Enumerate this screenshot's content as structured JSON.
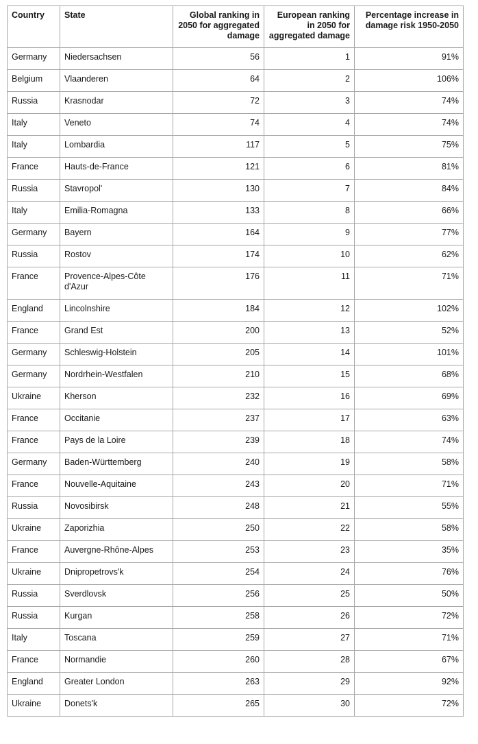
{
  "chart_data": {
    "type": "table",
    "columns": [
      "Country",
      "State",
      "Global ranking in 2050 for aggregated damage",
      "European ranking in 2050 for aggregated damage",
      "Percentage increase in damage risk 1950-2050"
    ],
    "rows": [
      [
        "Germany",
        "Niedersachsen",
        56,
        1,
        "91%"
      ],
      [
        "Belgium",
        "Vlaanderen",
        64,
        2,
        "106%"
      ],
      [
        "Russia",
        "Krasnodar",
        72,
        3,
        "74%"
      ],
      [
        "Italy",
        "Veneto",
        74,
        4,
        "74%"
      ],
      [
        "Italy",
        "Lombardia",
        117,
        5,
        "75%"
      ],
      [
        "France",
        "Hauts-de-France",
        121,
        6,
        "81%"
      ],
      [
        "Russia",
        "Stavropol'",
        130,
        7,
        "84%"
      ],
      [
        "Italy",
        "Emilia-Romagna",
        133,
        8,
        "66%"
      ],
      [
        "Germany",
        "Bayern",
        164,
        9,
        "77%"
      ],
      [
        "Russia",
        "Rostov",
        174,
        10,
        "62%"
      ],
      [
        "France",
        "Provence-Alpes-Côte d'Azur",
        176,
        11,
        "71%"
      ],
      [
        "England",
        "Lincolnshire",
        184,
        12,
        "102%"
      ],
      [
        "France",
        "Grand Est",
        200,
        13,
        "52%"
      ],
      [
        "Germany",
        "Schleswig-Holstein",
        205,
        14,
        "101%"
      ],
      [
        "Germany",
        "Nordrhein-Westfalen",
        210,
        15,
        "68%"
      ],
      [
        "Ukraine",
        "Kherson",
        232,
        16,
        "69%"
      ],
      [
        "France",
        "Occitanie",
        237,
        17,
        "63%"
      ],
      [
        "France",
        "Pays de la Loire",
        239,
        18,
        "74%"
      ],
      [
        "Germany",
        "Baden-Württemberg",
        240,
        19,
        "58%"
      ],
      [
        "France",
        "Nouvelle-Aquitaine",
        243,
        20,
        "71%"
      ],
      [
        "Russia",
        "Novosibirsk",
        248,
        21,
        "55%"
      ],
      [
        "Ukraine",
        "Zaporizhia",
        250,
        22,
        "58%"
      ],
      [
        "France",
        "Auvergne-Rhône-Alpes",
        253,
        23,
        "35%"
      ],
      [
        "Ukraine",
        "Dnipropetrovs'k",
        254,
        24,
        "76%"
      ],
      [
        "Russia",
        "Sverdlovsk",
        256,
        25,
        "50%"
      ],
      [
        "Russia",
        "Kurgan",
        258,
        26,
        "72%"
      ],
      [
        "Italy",
        "Toscana",
        259,
        27,
        "71%"
      ],
      [
        "France",
        "Normandie",
        260,
        28,
        "67%"
      ],
      [
        "England",
        "Greater London",
        263,
        29,
        "92%"
      ],
      [
        "Ukraine",
        "Donets'k",
        265,
        30,
        "72%"
      ]
    ]
  },
  "colors": {
    "border": "#a6a6a6",
    "text": "#1a1a1a",
    "background": "#ffffff"
  }
}
